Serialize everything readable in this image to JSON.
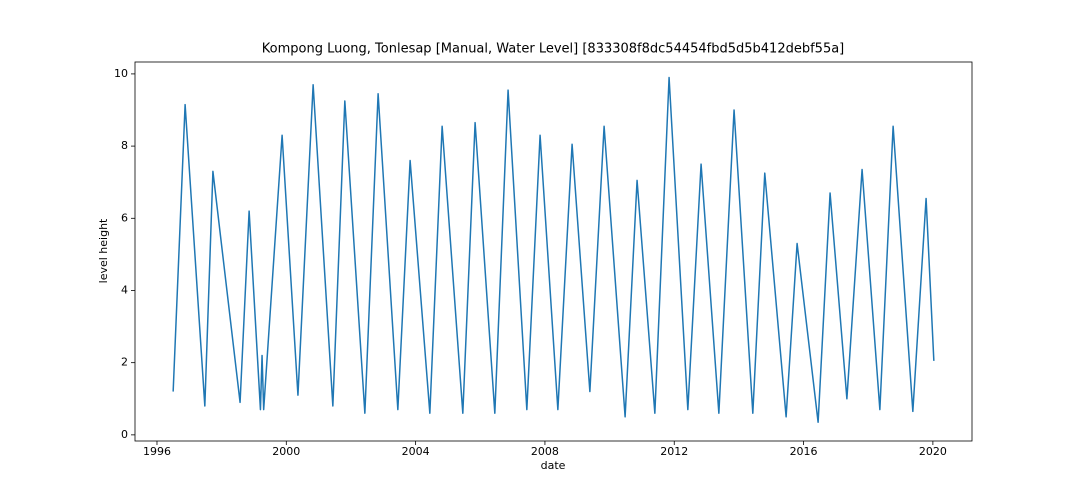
{
  "chart_data": {
    "type": "line",
    "title": "Kompong Luong, Tonlesap [Manual, Water Level] [833308f8dc54454fbd5d5b412debf55a]",
    "x_label": "date",
    "y_label": "level height",
    "x": [
      1996.5,
      1996.87,
      1997.48,
      1997.73,
      1998.57,
      1998.85,
      1999.2,
      1999.25,
      1999.3,
      1999.87,
      2000.36,
      2000.83,
      2001.44,
      2001.81,
      2002.43,
      2002.84,
      2003.45,
      2003.83,
      2004.44,
      2004.82,
      2005.46,
      2005.84,
      2006.45,
      2006.86,
      2007.44,
      2007.85,
      2008.4,
      2008.84,
      2009.39,
      2009.83,
      2010.48,
      2010.85,
      2011.4,
      2011.84,
      2012.42,
      2012.83,
      2013.38,
      2013.85,
      2014.43,
      2014.8,
      2015.46,
      2015.8,
      2016.45,
      2016.82,
      2017.34,
      2017.81,
      2018.36,
      2018.77,
      2019.38,
      2019.79,
      2020.03
    ],
    "values": [
      1.2,
      9.15,
      0.8,
      7.3,
      0.9,
      6.2,
      0.7,
      2.2,
      0.7,
      8.3,
      1.1,
      9.7,
      0.8,
      9.25,
      0.6,
      9.45,
      0.7,
      7.6,
      0.6,
      8.55,
      0.6,
      8.65,
      0.6,
      9.55,
      0.7,
      8.3,
      0.7,
      8.05,
      1.2,
      8.55,
      0.5,
      7.05,
      0.6,
      9.9,
      0.7,
      7.5,
      0.6,
      9.0,
      0.6,
      7.25,
      0.5,
      5.3,
      0.35,
      6.7,
      1.0,
      7.35,
      0.7,
      8.55,
      0.65,
      6.55,
      2.05
    ],
    "color": "#1f77b4",
    "xlim": [
      1995.32,
      2021.21
    ],
    "xticks": [
      1996,
      2000,
      2004,
      2008,
      2012,
      2016,
      2020
    ],
    "ylim": [
      -0.17,
      10.33
    ],
    "yticks": [
      0,
      2,
      4,
      6,
      8,
      10
    ]
  }
}
